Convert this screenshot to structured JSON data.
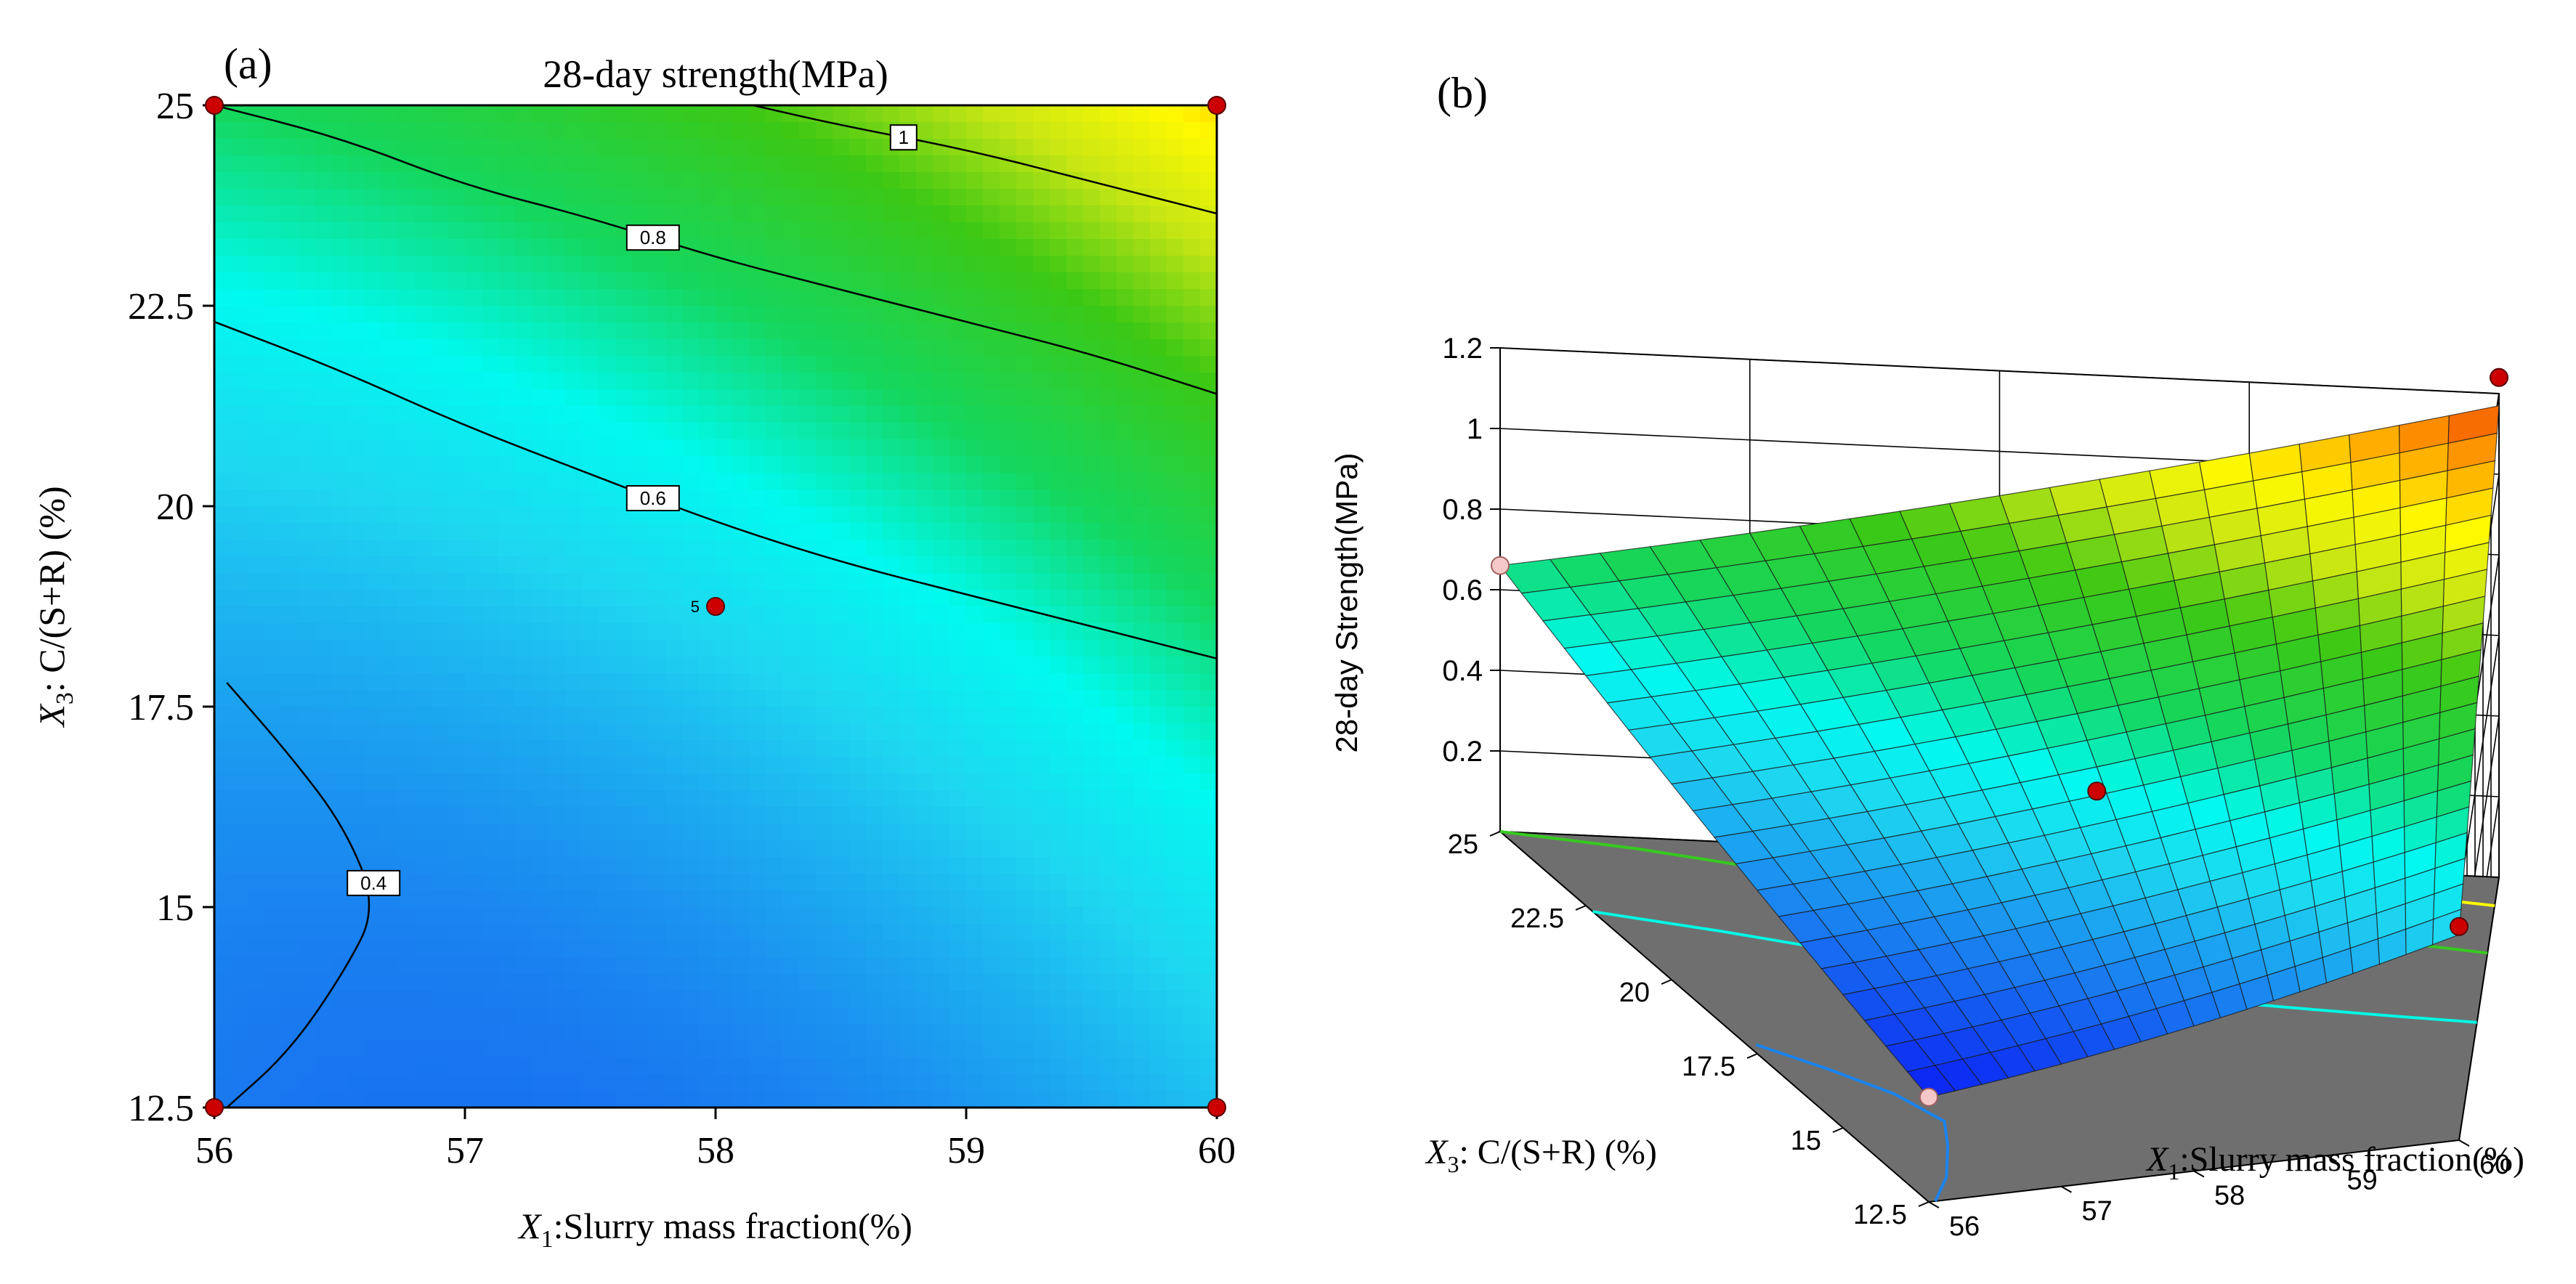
{
  "colors": {
    "design_point": "#cc0000",
    "design_point_below": "#f4c8c8",
    "floor": "#6f6f6f",
    "contour_line": "#000000"
  },
  "chart_data": [
    {
      "panel_label": "(a)",
      "type": "contour",
      "title": "28-day strength(MPa)",
      "xlabel_var": "X",
      "xlabel_sub": "1",
      "xlabel_rest": ":Slurry mass fraction(%)",
      "ylabel_var": "X",
      "ylabel_sub": "3",
      "ylabel_rest": ": C/(S+R) (%)",
      "xlim": [
        56,
        60
      ],
      "ylim": [
        12.5,
        25
      ],
      "xticks": [
        "56",
        "57",
        "58",
        "59",
        "60"
      ],
      "yticks": [
        "12.5",
        "15",
        "17.5",
        "20",
        "22.5",
        "25"
      ],
      "contours": [
        {
          "label": "0.4",
          "level": 0.4,
          "x": [
            56.05,
            56.3,
            56.52,
            56.65,
            56.52,
            56.3,
            56.05
          ],
          "y": [
            12.5,
            13.2,
            14.2,
            15.0,
            16.0,
            16.9,
            17.8
          ]
        },
        {
          "label": "0.6",
          "level": 0.6,
          "x": [
            56.0,
            56.5,
            57.0,
            57.5,
            58.0,
            58.5,
            59.0,
            59.5,
            60.0
          ],
          "y": [
            22.3,
            21.7,
            21.0,
            20.4,
            19.8,
            19.3,
            18.9,
            18.5,
            18.1
          ]
        },
        {
          "label": "0.8",
          "level": 0.8,
          "x": [
            56.0,
            56.5,
            57.0,
            57.5,
            58.0,
            58.5,
            59.0,
            59.5,
            60.0
          ],
          "y": [
            25.0,
            24.6,
            24.0,
            23.6,
            23.1,
            22.7,
            22.3,
            21.9,
            21.4
          ]
        },
        {
          "label": "1",
          "level": 1.0,
          "x": [
            58.15,
            58.5,
            59.0,
            59.5,
            60.0
          ],
          "y": [
            25.0,
            24.75,
            24.45,
            24.05,
            23.65
          ]
        }
      ],
      "design_points": [
        {
          "x": 56,
          "y": 25
        },
        {
          "x": 60,
          "y": 25
        },
        {
          "x": 56,
          "y": 12.5
        },
        {
          "x": 60,
          "y": 12.5
        },
        {
          "x": 58,
          "y": 18.75
        }
      ],
      "center_point_label": "5"
    },
    {
      "panel_label": "(b)",
      "type": "surface3d",
      "zlabel": "28-day Strength(MPa)",
      "xlabel_var": "X",
      "xlabel_sub": "1",
      "xlabel_rest": ":Slurry mass fraction(%)",
      "ylabel_var": "X",
      "ylabel_sub": "3",
      "ylabel_rest": ": C/(S+R) (%)",
      "xticks": [
        "56",
        "57",
        "58",
        "59",
        "60"
      ],
      "yticks": [
        "12.5",
        "15",
        "17.5",
        "20",
        "22.5",
        "25"
      ],
      "zticks": [
        "0.2",
        "0.4",
        "0.6",
        "0.8",
        "1",
        "1.2"
      ],
      "xlim": [
        56,
        60
      ],
      "ylim": [
        12.5,
        25
      ],
      "zlim": [
        0,
        1.2
      ],
      "corner_values": [
        {
          "x": 56,
          "y": 12.5,
          "z": 0.26
        },
        {
          "x": 60,
          "y": 12.5,
          "z": 0.51
        },
        {
          "x": 56,
          "y": 25,
          "z": 0.66
        },
        {
          "x": 60,
          "y": 25,
          "z": 1.17
        }
      ],
      "design_points": [
        {
          "x": 56,
          "y": 25,
          "z": 0.66,
          "below": true
        },
        {
          "x": 60,
          "y": 25,
          "z": 1.24,
          "below": false
        },
        {
          "x": 60,
          "y": 12.5,
          "z": 0.53,
          "below": false
        },
        {
          "x": 58,
          "y": 18.75,
          "z": 0.55,
          "below": false
        },
        {
          "x": 56,
          "y": 12.5,
          "z": 0.26,
          "below": true
        }
      ]
    }
  ]
}
